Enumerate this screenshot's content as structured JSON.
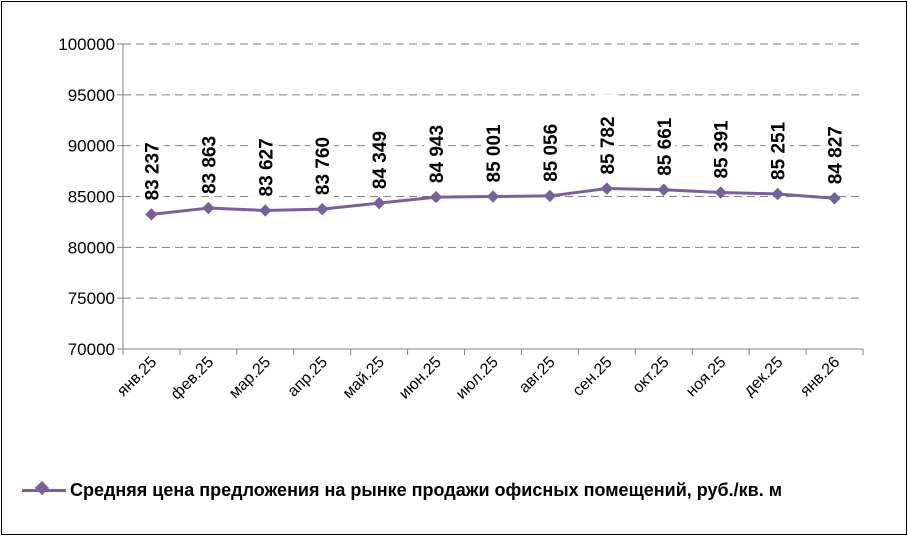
{
  "chart_data": {
    "type": "line",
    "categories": [
      "янв.25",
      "фев.25",
      "мар.25",
      "апр.25",
      "май.25",
      "июн.25",
      "июл.25",
      "авг.25",
      "сен.25",
      "окт.25",
      "ноя.25",
      "дек.25",
      "янв.26"
    ],
    "series": [
      {
        "name": "Средняя цена предложения на рынке продажи офисных помещений,  руб./кв. м",
        "values": [
          83237,
          83863,
          83627,
          83760,
          84349,
          84943,
          85001,
          85056,
          85782,
          85661,
          85391,
          85251,
          84827
        ],
        "labels": [
          "83 237",
          "83 863",
          "83 627",
          "83 760",
          "84 349",
          "84 943",
          "85 001",
          "85 056",
          "85 782",
          "85 661",
          "85 391",
          "85 251",
          "84 827"
        ]
      }
    ],
    "ylim": [
      70000,
      100000
    ],
    "yticks": [
      "70000",
      "75000",
      "80000",
      "85000",
      "90000",
      "95000",
      "100000"
    ],
    "grid": "dashed horizontal",
    "legend": "bottom",
    "line_color": "#7a5f9e"
  }
}
